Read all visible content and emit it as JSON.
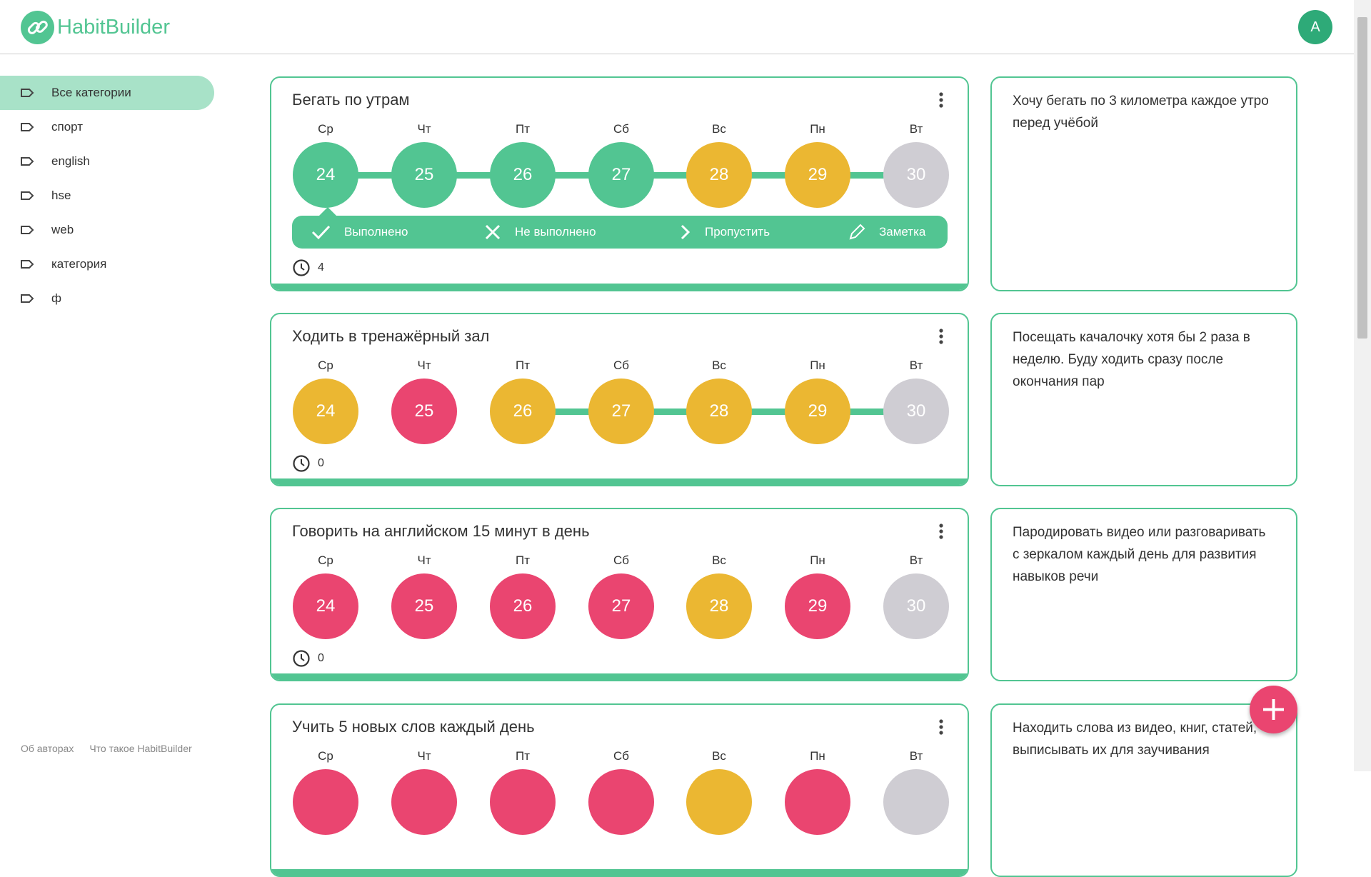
{
  "header": {
    "logo": "HabitBuilder",
    "avatar": "A"
  },
  "sidebar": {
    "categories": [
      "Все категории",
      "спорт",
      "english",
      "hse",
      "web",
      "категория",
      "ф"
    ],
    "footer": [
      "Об авторах",
      "Что такое HabitBuilder"
    ]
  },
  "habits": [
    {
      "title": "Бегать по утрам",
      "days": [
        {
          "weekday": "Ср",
          "date": "24",
          "color": "#52c592"
        },
        {
          "weekday": "Чт",
          "date": "25",
          "color": "#52c592"
        },
        {
          "weekday": "Пт",
          "date": "26",
          "color": "#52c592"
        },
        {
          "weekday": "Сб",
          "date": "27",
          "color": "#52c592"
        },
        {
          "weekday": "Вс",
          "date": "28",
          "color": "#ebb732"
        },
        {
          "weekday": "Пн",
          "date": "29",
          "color": "#ebb732"
        },
        {
          "weekday": "Вт",
          "date": "30",
          "color": "#cfcdd3"
        }
      ],
      "actions": [
        "Выполнено",
        "Не выполнено",
        "Пропустить",
        "Заметка"
      ],
      "count": "4",
      "note": "Хочу бегать по 3 километра каждое утро перед учёбой"
    },
    {
      "title": "Ходить в тренажёрный зал",
      "days": [
        {
          "weekday": "Ср",
          "date": "24",
          "color": "#ebb732"
        },
        {
          "weekday": "Чт",
          "date": "25",
          "color": "#ea4570"
        },
        {
          "weekday": "Пт",
          "date": "26",
          "color": "#ebb732"
        },
        {
          "weekday": "Сб",
          "date": "27",
          "color": "#ebb732"
        },
        {
          "weekday": "Вс",
          "date": "28",
          "color": "#ebb732"
        },
        {
          "weekday": "Пн",
          "date": "29",
          "color": "#ebb732"
        },
        {
          "weekday": "Вт",
          "date": "30",
          "color": "#cfcdd3"
        }
      ],
      "count": "0",
      "note": "Посещать качалочку хотя бы 2 раза в неделю. Буду ходить сразу после окончания пар"
    },
    {
      "title": "Говорить на английском 15 минут в день",
      "days": [
        {
          "weekday": "Ср",
          "date": "24",
          "color": "#ea4570"
        },
        {
          "weekday": "Чт",
          "date": "25",
          "color": "#ea4570"
        },
        {
          "weekday": "Пт",
          "date": "26",
          "color": "#ea4570"
        },
        {
          "weekday": "Сб",
          "date": "27",
          "color": "#ea4570"
        },
        {
          "weekday": "Вс",
          "date": "28",
          "color": "#ebb732"
        },
        {
          "weekday": "Пн",
          "date": "29",
          "color": "#ea4570"
        },
        {
          "weekday": "Вт",
          "date": "30",
          "color": "#cfcdd3"
        }
      ],
      "count": "0",
      "note": "Пародировать видео или разговаривать с зеркалом каждый день для развития навыков речи"
    },
    {
      "title": "Учить 5 новых слов каждый день",
      "days": [
        {
          "weekday": "Ср",
          "color": "#ea4570"
        },
        {
          "weekday": "Чт",
          "color": "#ea4570"
        },
        {
          "weekday": "Пт",
          "color": "#ea4570"
        },
        {
          "weekday": "Сб",
          "color": "#ea4570"
        },
        {
          "weekday": "Вс",
          "color": "#ebb732"
        },
        {
          "weekday": "Пн",
          "color": "#ea4570"
        },
        {
          "weekday": "Вт",
          "color": "#cfcdd3"
        }
      ],
      "note": "Находить слова из видео, книг, статей, выписывать их для заучивания"
    }
  ]
}
